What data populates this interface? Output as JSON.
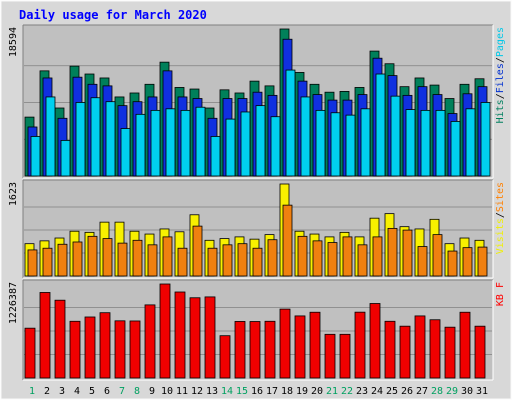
{
  "chart_data": [
    {
      "type": "bar",
      "title": "Daily usage for March 2020",
      "categories": [
        "1",
        "2",
        "3",
        "4",
        "5",
        "6",
        "7",
        "8",
        "9",
        "10",
        "11",
        "12",
        "13",
        "14",
        "15",
        "16",
        "17",
        "18",
        "19",
        "20",
        "21",
        "22",
        "23",
        "24",
        "25",
        "26",
        "27",
        "28",
        "29",
        "30",
        "31"
      ],
      "weekend_color": "#00805c",
      "weekday_color": "#00805c",
      "ymax_label": "18594",
      "ylim": [
        0,
        18594
      ],
      "legend": [
        {
          "name": "Pages",
          "color": "#00c8e8"
        },
        {
          "name": "Files",
          "color": "#0030d0"
        },
        {
          "name": "Hits",
          "color": "#008060"
        }
      ],
      "legend_separator": "/",
      "series": [
        {
          "name": "Hits",
          "color": "#00805a",
          "values": [
            7450,
            13300,
            8600,
            13900,
            12900,
            12400,
            10000,
            10500,
            11600,
            14400,
            11200,
            11000,
            8600,
            10900,
            10500,
            12000,
            11400,
            18594,
            13100,
            11600,
            10600,
            10700,
            11200,
            15800,
            14200,
            11300,
            12400,
            11500,
            9800,
            11600,
            12300
          ]
        },
        {
          "name": "Files",
          "color": "#1030e0",
          "values": [
            6200,
            12400,
            7300,
            12500,
            11600,
            11400,
            8900,
            9400,
            10000,
            13300,
            10000,
            9800,
            7300,
            9800,
            9800,
            10600,
            10200,
            17300,
            12000,
            10300,
            9600,
            9600,
            10300,
            14900,
            12700,
            10200,
            11300,
            10300,
            7900,
            10400,
            11300
          ]
        },
        {
          "name": "Pages",
          "color": "#00d0f0",
          "values": [
            5000,
            10000,
            4500,
            9300,
            9900,
            9400,
            6000,
            7800,
            8300,
            8500,
            8300,
            8700,
            5000,
            7200,
            8100,
            8900,
            7500,
            13400,
            10000,
            8300,
            8000,
            7700,
            8500,
            12900,
            10100,
            8400,
            8300,
            8300,
            6900,
            8500,
            9300
          ]
        }
      ]
    },
    {
      "type": "bar",
      "ymax_label": "1623",
      "ylim": [
        0,
        1623
      ],
      "legend": [
        {
          "name": "Sites",
          "color": "#ff8000"
        },
        {
          "name": "Visits",
          "color": "#f0f000"
        }
      ],
      "legend_separator": "/",
      "series": [
        {
          "name": "Visits",
          "color": "#f8f000",
          "values": [
            570,
            620,
            670,
            790,
            770,
            950,
            950,
            790,
            740,
            830,
            780,
            1080,
            630,
            660,
            690,
            650,
            730,
            1623,
            790,
            740,
            690,
            770,
            690,
            1020,
            1100,
            870,
            830,
            1000,
            570,
            670,
            630
          ]
        },
        {
          "name": "Sites",
          "color": "#f08010",
          "values": [
            460,
            490,
            560,
            600,
            700,
            660,
            580,
            630,
            550,
            690,
            490,
            880,
            490,
            550,
            570,
            490,
            640,
            1250,
            700,
            620,
            590,
            690,
            550,
            690,
            840,
            810,
            520,
            730,
            440,
            500,
            510
          ]
        }
      ]
    },
    {
      "type": "bar",
      "ymax_label": "1226387",
      "ylim": [
        0,
        1226387
      ],
      "legend": [
        {
          "name": "KB F",
          "color": "#ff0000"
        }
      ],
      "series": [
        {
          "name": "KB F",
          "color": "#f00000",
          "values": [
            650000,
            1116000,
            1015000,
            740000,
            796000,
            852000,
            746000,
            744000,
            954000,
            1226387,
            1122000,
            1047000,
            1058000,
            552000,
            738000,
            737000,
            740000,
            899000,
            810000,
            858000,
            570000,
            570000,
            859000,
            972000,
            740000,
            676000,
            810000,
            760000,
            663000,
            858000,
            676000
          ]
        }
      ]
    }
  ],
  "colors": {
    "plot_background": "#c0c0c0",
    "title": "#0000ff",
    "day_label": "#00805c",
    "weekend_label": "#00a060"
  }
}
